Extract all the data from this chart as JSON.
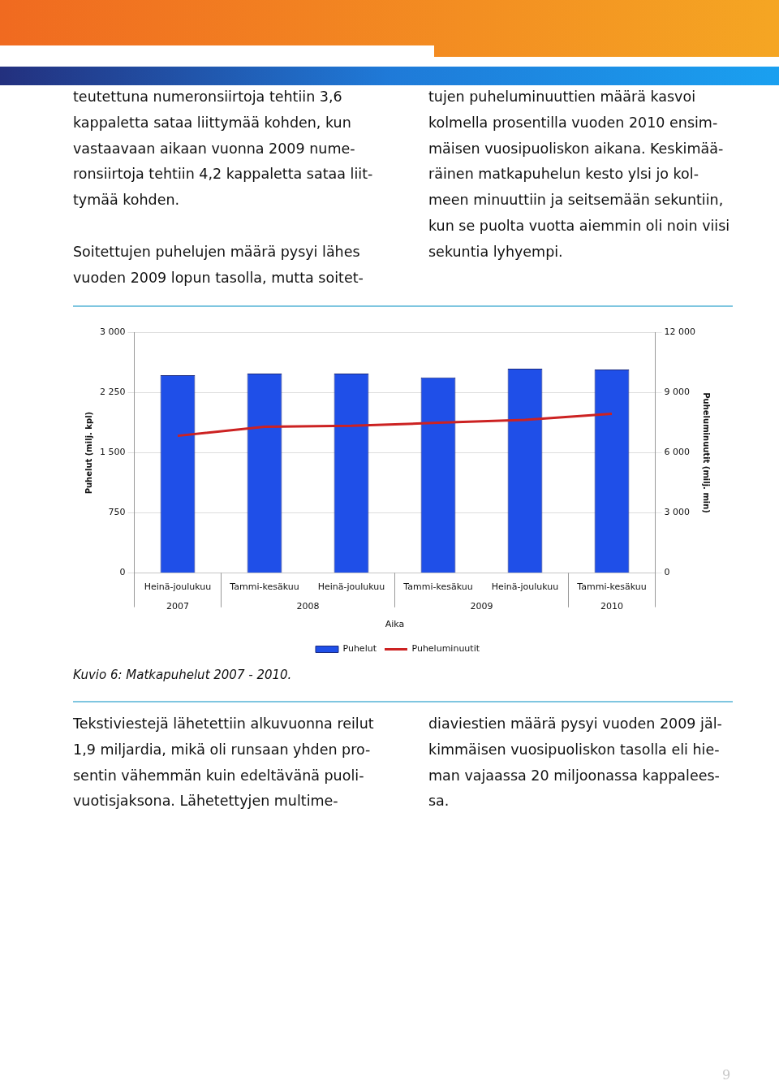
{
  "chart_data": {
    "type": "bar",
    "title": "Kuvio 6: Matkapuhelut 2007 - 2010.",
    "xlabel": "Aika",
    "ylabel": "Puhelut (milj. kpl)",
    "y2label": "Puheluminuutit (milj. min)",
    "categories": [
      "Heinä-joulukuu",
      "Tammi-kesäkuu",
      "Heinä-joulukuu",
      "Tammi-kesäkuu",
      "Heinä-joulukuu",
      "Tammi-kesäkuu"
    ],
    "series": [
      {
        "name": "Puhelut",
        "color": "#1f4fe8",
        "values": [
          2470,
          2490,
          2490,
          2440,
          2550,
          2540
        ]
      },
      {
        "name": "Puheluminuutit",
        "type": "line",
        "axis": "y2",
        "color": "#cc2222",
        "values": [
          6850,
          7300,
          7350,
          7500,
          7650,
          7950
        ]
      }
    ],
    "ylim": [
      0,
      3000
    ],
    "yticks": [
      {
        "value": 0,
        "label": "0"
      },
      {
        "value": 750,
        "label": "750"
      },
      {
        "value": 1500,
        "label": "1 500"
      },
      {
        "value": 2250,
        "label": "2 250"
      },
      {
        "value": 3000,
        "label": "3 000"
      }
    ],
    "y2lim": [
      0,
      12000
    ],
    "y2ticks": [
      {
        "value": 0,
        "label": "0"
      },
      {
        "value": 3000,
        "label": "3 000"
      },
      {
        "value": 6000,
        "label": "6 000"
      },
      {
        "value": 9000,
        "label": "9 000"
      },
      {
        "value": 12000,
        "label": "12 000"
      }
    ],
    "grid": "y",
    "legend": "bottom",
    "marker": "none",
    "line_style": "solid",
    "annotations": [
      "2007",
      "2008",
      "2009",
      "2010",
      "teutettuna numeronsiirtoja tehtiin 3,6\nkappaletta sataa liittymää kohden, kun\nvastaavaan aikaan vuonna 2009 nume-\nronsiirtoja tehtiin 4,2 kappaletta sataa liit-\ntymää kohden.\n\nSoitettujen puhelujen määrä pysyi lähes\nvuoden 2009 lopun tasolla, mutta soitet-",
      "tujen puheluminuuttien määrä kasvoi\nkolmella prosentilla vuoden 2010 ensim-\nmäisen vuosipuoliskon aikana. Keskimää-\nräinen matkapuhelun kesto ylsi jo kol-\nmeen minuuttiin ja seitsemään sekuntiin,\nkun se puolta vuotta aiemmin oli noin viisi\nsekuntia lyhyempi.",
      "Tekstiviestejä lähetettiin alkuvuonna reilut\n1,9 miljardia, mikä oli runsaan yhden pro-\nsentin vähemmän kuin edeltävänä puoli-\nvuotisjaksona. Lähetettyjen multime-",
      "diaviestien määrä pysyi vuoden 2009 jäl-\nkimmäisen vuosipuoliskon tasolla eli hie-\nman vajaassa 20 miljoonassa kappalees-\nsa.",
      "9"
    ]
  }
}
